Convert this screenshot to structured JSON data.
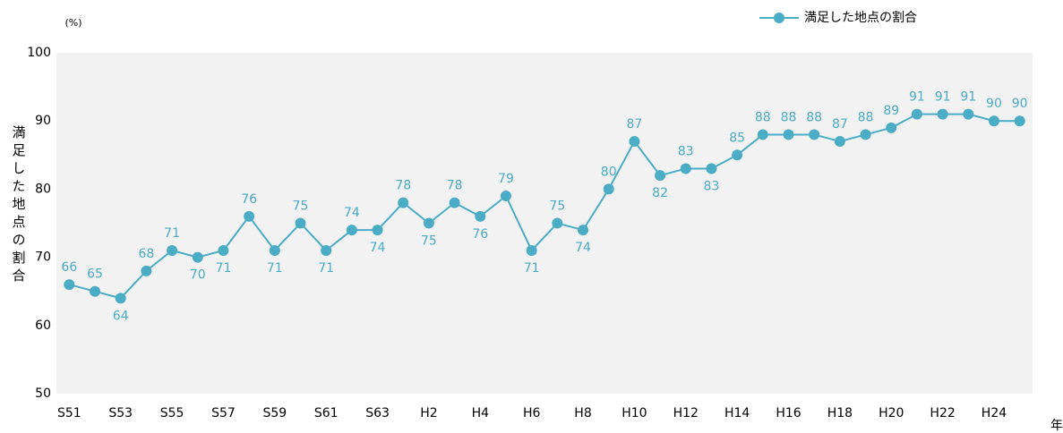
{
  "chart_data": {
    "type": "line",
    "y_unit": "(%)",
    "y_label": "満足した地点の割合",
    "x_label": "年",
    "categories": [
      "S51",
      null,
      "S53",
      null,
      "S55",
      null,
      "S57",
      null,
      "S59",
      null,
      "S61",
      null,
      "S63",
      null,
      "H2",
      null,
      "H4",
      null,
      "H6",
      null,
      "H8",
      null,
      "H10",
      null,
      "H12",
      null,
      "H14",
      null,
      "H16",
      null,
      "H18",
      null,
      "H20",
      null,
      "H22",
      null,
      "H24",
      null
    ],
    "series": [
      {
        "name": "満足した地点の割合",
        "color": "#4bacc6",
        "values": [
          66,
          65,
          64,
          68,
          71,
          70,
          71,
          76,
          71,
          75,
          71,
          74,
          74,
          78,
          75,
          78,
          76,
          79,
          71,
          75,
          74,
          80,
          87,
          82,
          83,
          83,
          85,
          88,
          88,
          88,
          87,
          88,
          89,
          91,
          91,
          91,
          90,
          90
        ]
      }
    ],
    "ylim": [
      50,
      100
    ],
    "yticks": [
      50,
      60,
      70,
      80,
      90,
      100
    ],
    "grid": false,
    "legend": "top-right"
  }
}
